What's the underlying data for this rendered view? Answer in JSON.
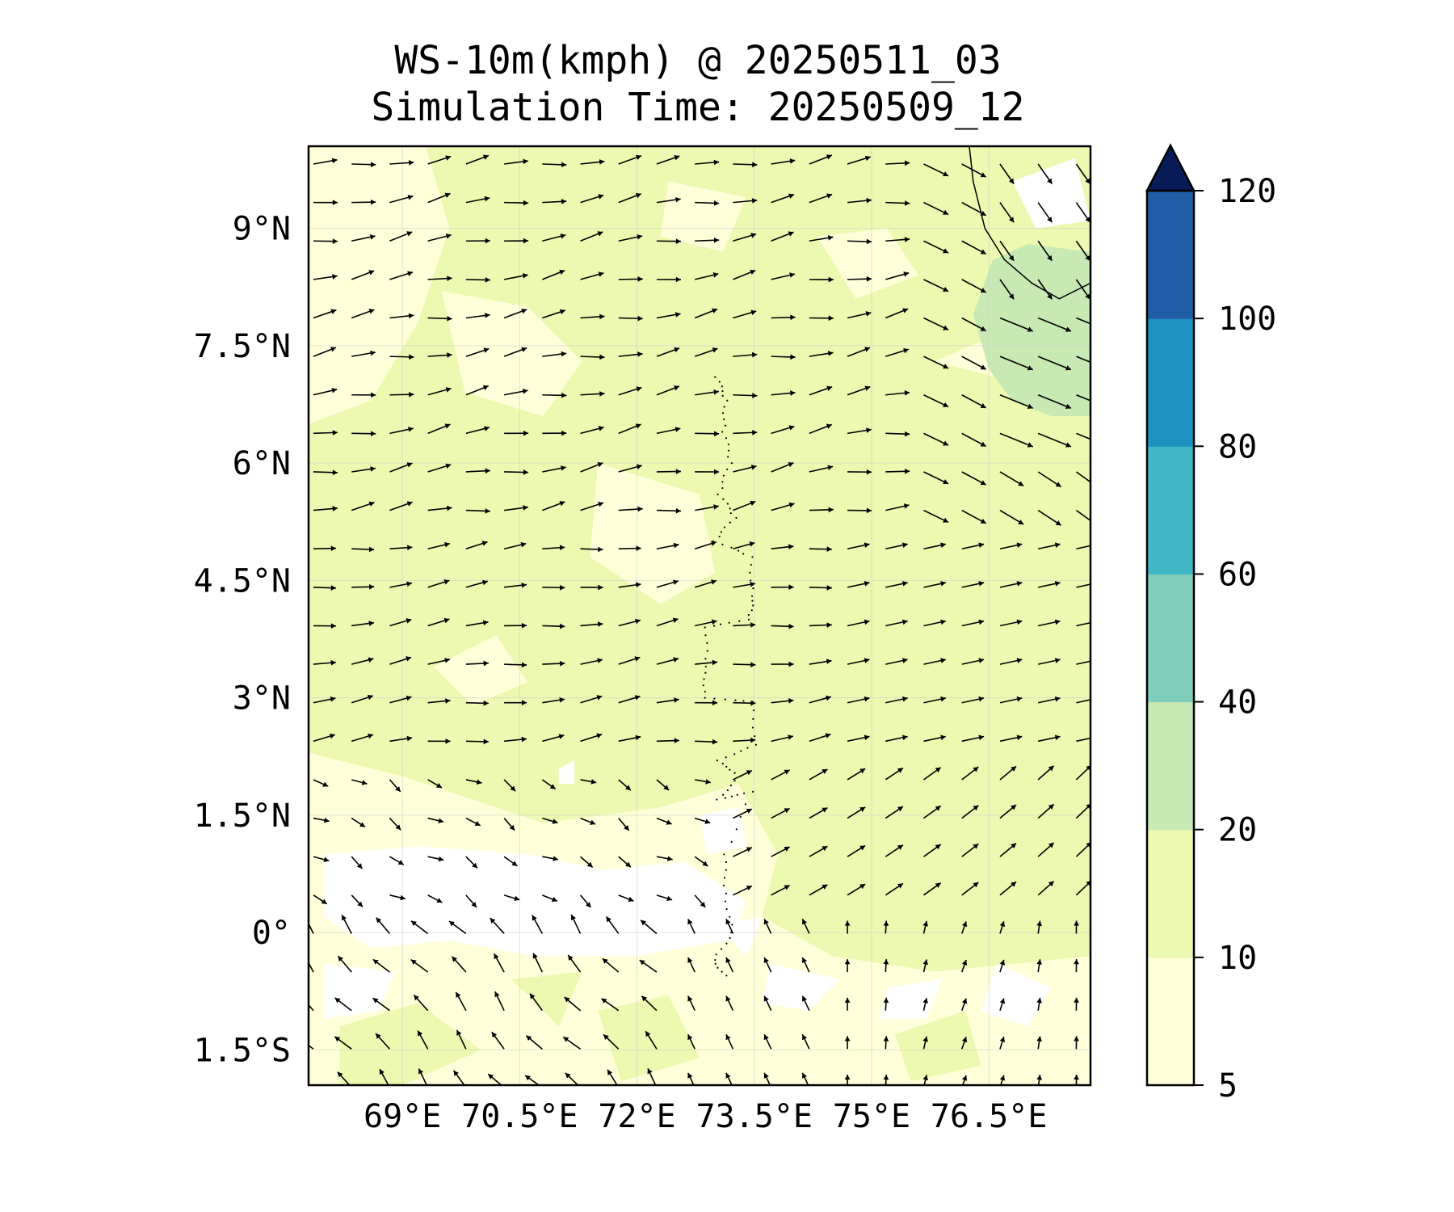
{
  "title": "WS-10m(kmph) @ 20250511_03",
  "subtitle": "Simulation Time: 20250509_12",
  "map": {
    "lon_range": [
      67.8,
      77.8
    ],
    "lat_range": [
      -1.95,
      10.05
    ],
    "lat_tick_labels": [
      {
        "value": 9,
        "label": "9°N"
      },
      {
        "value": 7.5,
        "label": "7.5°N"
      },
      {
        "value": 6,
        "label": "6°N"
      },
      {
        "value": 4.5,
        "label": "4.5°N"
      },
      {
        "value": 3,
        "label": "3°N"
      },
      {
        "value": 1.5,
        "label": "1.5°N"
      },
      {
        "value": 0,
        "label": "0°"
      },
      {
        "value": -1.5,
        "label": "1.5°S"
      }
    ],
    "lon_tick_labels": [
      {
        "value": 69,
        "label": "69°E"
      },
      {
        "value": 70.5,
        "label": "70.5°E"
      },
      {
        "value": 72,
        "label": "72°E"
      },
      {
        "value": 73.5,
        "label": "73.5°E"
      },
      {
        "value": 75,
        "label": "75°E"
      },
      {
        "value": 76.5,
        "label": "76.5°E"
      }
    ],
    "gridlines": true,
    "coastline_color": "#000000",
    "island_chain": "Maldives"
  },
  "colorbar": {
    "levels": [
      5,
      10,
      20,
      40,
      60,
      80,
      100,
      120
    ],
    "colors": [
      "#ffffd9",
      "#edf8b1",
      "#c7e9b4",
      "#7fcdbb",
      "#41b6c4",
      "#1d91c0",
      "#225ea8",
      "#0c2c84"
    ],
    "extend_color": "#081d58",
    "extend": "max",
    "tick_labels": [
      "5",
      "10",
      "20",
      "40",
      "60",
      "80",
      "100",
      "120"
    ]
  },
  "wind_field": {
    "arrow_color": "#000000",
    "regimes": [
      {
        "region": "north of 5°N",
        "direction": "westerly/west-south-westerly",
        "speed_kmph": "10-20"
      },
      {
        "region": "near Sri Lanka 7-8.5°N, 76.5-77.8°E",
        "direction": "west-north-westerly",
        "speed_kmph": "20-30"
      },
      {
        "region": "0-2°N west of 73°E",
        "direction": "south-westerly/variable",
        "speed_kmph": "5-10"
      },
      {
        "region": "south of 0°",
        "direction": "south-easterly",
        "speed_kmph": "5-15"
      }
    ]
  }
}
